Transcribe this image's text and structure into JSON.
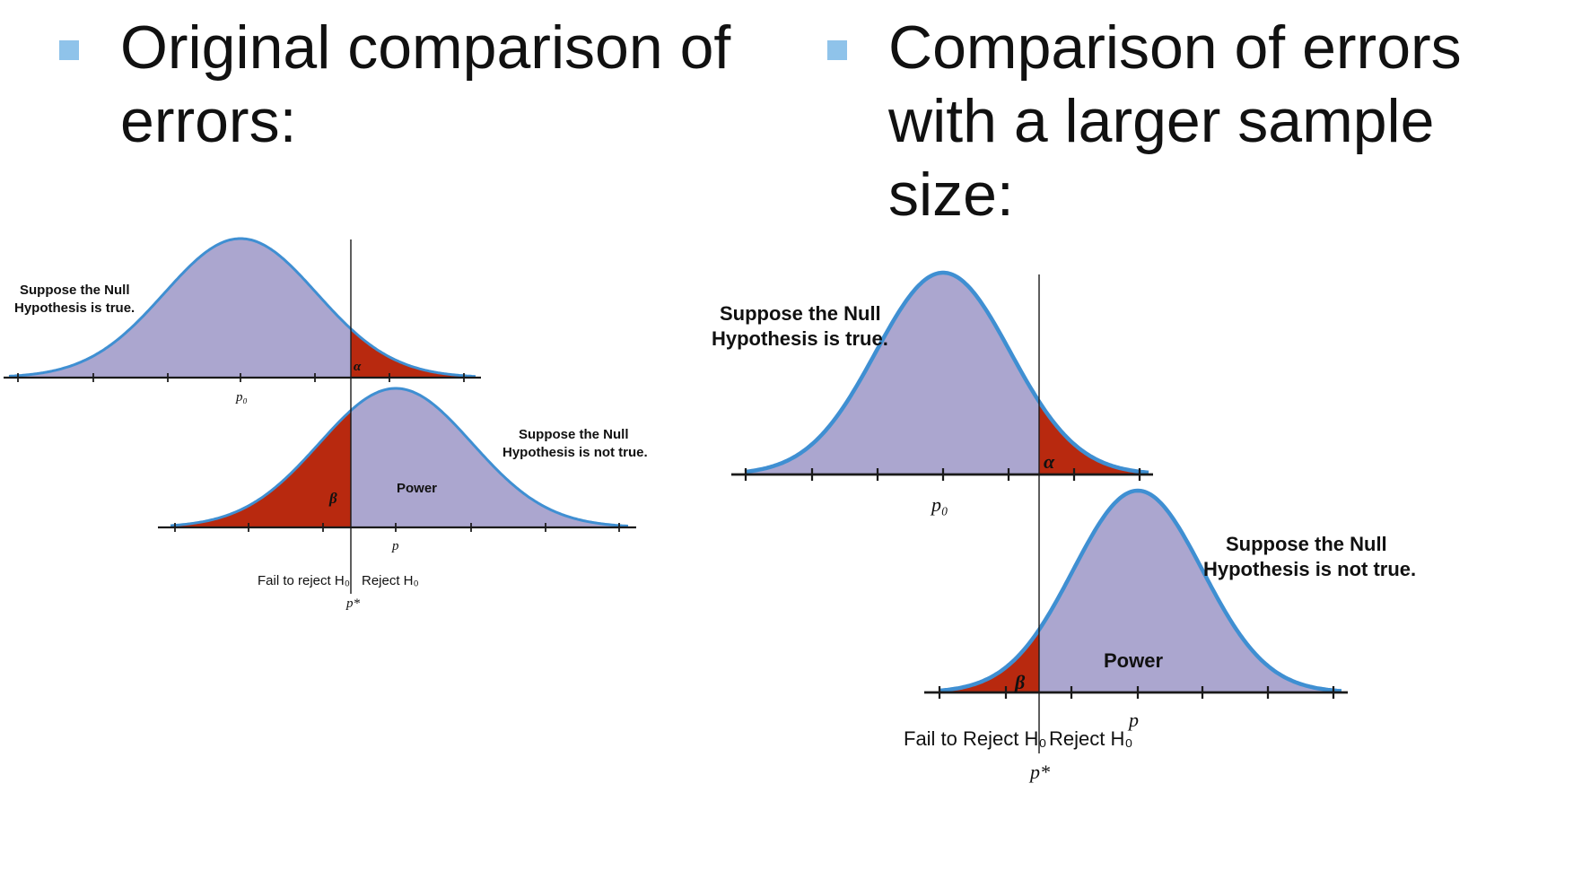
{
  "left": {
    "bullet_text": "Original comparison of errors:",
    "null_true_line1": "Suppose the Null",
    "null_true_line2": "Hypothesis is true.",
    "null_false_line1": "Suppose the Null",
    "null_false_line2": "Hypothesis is not true.",
    "alpha": "α",
    "beta": "β",
    "power": "Power",
    "p0": "p₀",
    "p": "p",
    "fail_to_reject": "Fail to reject H₀",
    "reject": "Reject H₀",
    "p_star": "p*"
  },
  "right": {
    "bullet_text": "Comparison of errors with a larger sample size:",
    "null_true_line1": "Suppose the Null",
    "null_true_line2": "Hypothesis is true.",
    "null_false_line1": "Suppose the Null",
    "null_false_line2": "Hypothesis is not true.",
    "alpha": "α",
    "beta": "β",
    "power": "Power",
    "p0": "p₀",
    "p": "p",
    "fail_to_reject": "Fail to Reject H₀",
    "reject": "Reject H₀",
    "p_star": "p*"
  },
  "colors": {
    "bullet": "#8fc3ea",
    "curve_fill": "#aba6cf",
    "curve_stroke": "#3f8fd2",
    "error_fill": "#b8290f",
    "axis": "#1a1a1a"
  }
}
